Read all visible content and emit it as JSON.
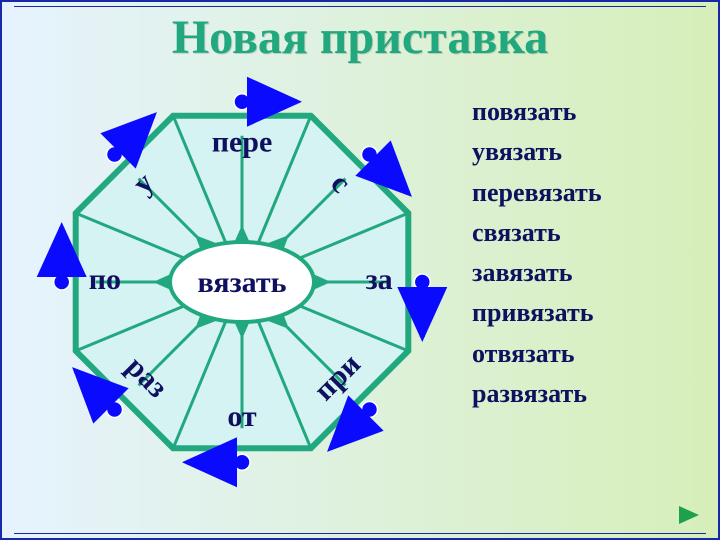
{
  "title": {
    "text": "Новая приставка",
    "color": "#22a87f",
    "fontsize": 48
  },
  "background": {
    "gradient_from": "#e6f3ff",
    "gradient_to": "#d6efb8",
    "frame_color": "#1728a8",
    "frame_width": 2
  },
  "center_word": {
    "text": "вязать",
    "color": "#101060",
    "fontsize": 30,
    "ellipse_fill": "#ffffff",
    "ellipse_stroke": "#22a87f",
    "ellipse_stroke_width": 4
  },
  "octagon": {
    "fill": "#d6f3f3",
    "stroke": "#22a87f",
    "stroke_width": 6,
    "spoke_color": "#22a87f",
    "spoke_width": 3
  },
  "prefixes": {
    "fontsize": 30,
    "color": "#101060",
    "items": [
      {
        "label": "пере",
        "angle_deg": -90,
        "rot": 0
      },
      {
        "label": "с",
        "angle_deg": -45,
        "rot": 45
      },
      {
        "label": "за",
        "angle_deg": 0,
        "rot": 0
      },
      {
        "label": "при",
        "angle_deg": 45,
        "rot": -45
      },
      {
        "label": "от",
        "angle_deg": 90,
        "rot": 0
      },
      {
        "label": "раз",
        "angle_deg": 135,
        "rot": 45
      },
      {
        "label": "по",
        "angle_deg": 180,
        "rot": 0
      },
      {
        "label": "у",
        "angle_deg": -135,
        "rot": -45
      }
    ]
  },
  "inner_arrows": {
    "color": "#22a87f",
    "width": 3
  },
  "outer_markers": {
    "dot_fill": "#0a0aff",
    "dot_radius": 8,
    "arrow_color": "#0a0aff",
    "arrow_width": 5,
    "arrow_len": 55
  },
  "word_list": {
    "color": "#101060",
    "fontsize": 26,
    "items": [
      "повязать",
      "увязать",
      "перевязать",
      "связать",
      "завязать",
      "привязать",
      "отвязать",
      "развязать"
    ]
  },
  "nav": {
    "next_color": "#1fa04c"
  }
}
